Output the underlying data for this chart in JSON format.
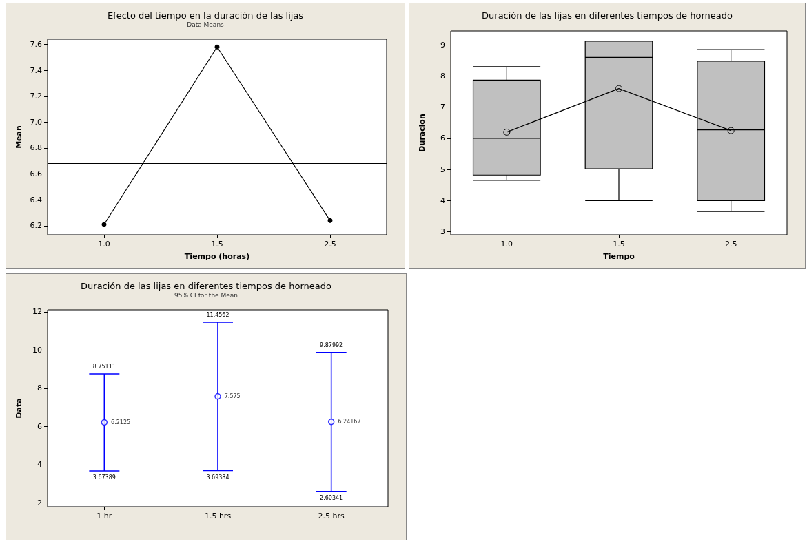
{
  "chart_data": [
    {
      "type": "line",
      "title": "Efecto del tiempo en la duración de las lijas",
      "subtitle": "Data Means",
      "xlabel": "Tiempo (horas)",
      "ylabel": "Mean",
      "categories": [
        "1.0",
        "1.5",
        "2.5"
      ],
      "series": [
        {
          "color": "#000000",
          "values": [
            6.21,
            7.58,
            6.24
          ]
        }
      ],
      "ylim": [
        6.13,
        7.64
      ],
      "yticks": [
        6.2,
        6.4,
        6.6,
        6.8,
        {
          "value": 7,
          "label": "7.0"
        },
        7.2,
        7.4,
        7.6
      ],
      "marker": "circle",
      "grid": false,
      "ref_lines": [
        {
          "axis": "y",
          "value": 6.68,
          "color": "#000000"
        }
      ]
    },
    {
      "type": "box",
      "title": "Duración de las lijas en diferentes tiempos de horneado",
      "xlabel": "Tiempo",
      "ylabel": "Duracion",
      "categories": [
        "1.0",
        "1.5",
        "2.5"
      ],
      "boxes": [
        {
          "low": 4.65,
          "q1": 4.82,
          "median": 6.0,
          "q3": 7.87,
          "high": 8.3
        },
        {
          "low": 4.0,
          "q1": 5.02,
          "median": 8.6,
          "q3": 9.12,
          "high": 9.12
        },
        {
          "low": 3.65,
          "q1": 4.0,
          "median": 6.27,
          "q3": 8.48,
          "high": 8.85
        }
      ],
      "series": [
        {
          "type": "line",
          "color": "#000000",
          "values": [
            6.2,
            7.6,
            6.25
          ]
        }
      ],
      "color": "#c0c0c0",
      "ylim": [
        2.9,
        9.45
      ],
      "yticks": [
        3,
        4,
        5,
        6,
        7,
        8,
        9
      ],
      "marker": "circle",
      "grid": false
    },
    {
      "type": "scatter",
      "title": "Duración de las lijas en diferentes tiempos de horneado",
      "subtitle": "95% CI for the Mean",
      "ylabel": "Data",
      "categories": [
        "1 hr",
        "1.5 hrs",
        "2.5 hrs"
      ],
      "series": [
        {
          "color": "#0000ff",
          "values": [
            6.2125,
            7.575,
            6.24167
          ],
          "value_labels": [
            "6.2125",
            "7.575",
            "6.24167"
          ],
          "errors": [
            [
              3.67389,
              8.75111
            ],
            [
              3.69384,
              11.4562
            ],
            [
              2.60341,
              9.87992
            ]
          ]
        }
      ],
      "ylim": [
        1.8,
        12.1
      ],
      "yticks": [
        2,
        4,
        6,
        8,
        10,
        12
      ],
      "marker": "circle",
      "grid": false,
      "annotations": [
        {
          "text": "8.75111",
          "x": "1 hr",
          "y": 8.75111
        },
        {
          "text": "3.67389",
          "x": "1 hr",
          "y": 3.67389
        },
        {
          "text": "11.4562",
          "x": "1.5 hrs",
          "y": 11.4562
        },
        {
          "text": "3.69384",
          "x": "1.5 hrs",
          "y": 3.69384
        },
        {
          "text": "9.87992",
          "x": "2.5 hrs",
          "y": 9.87992
        },
        {
          "text": "2.60341",
          "x": "2.5 hrs",
          "y": 2.60341
        }
      ]
    }
  ]
}
